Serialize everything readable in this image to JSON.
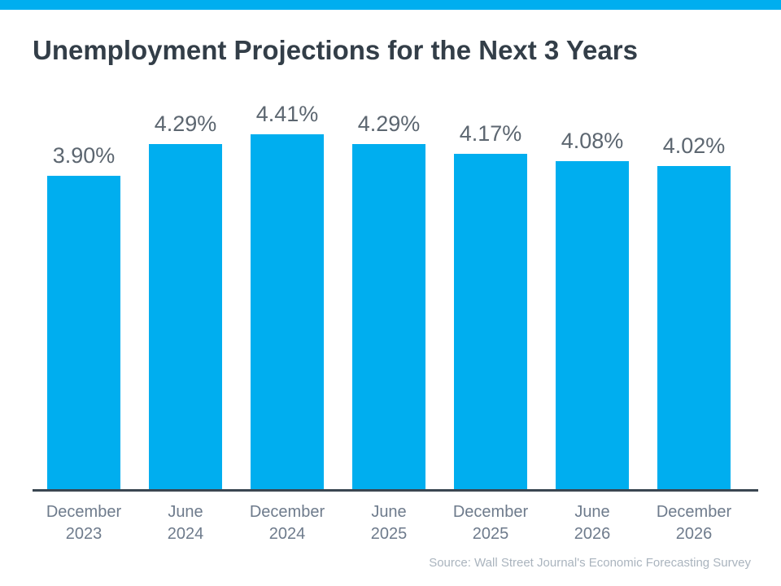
{
  "title": "Unemployment Projections for the Next 3 Years",
  "source_note": "Source: Wall Street Journal's Economic Forecasting Survey",
  "colors": {
    "background": "#FFFFFF",
    "accent": "#00AEEF",
    "bar_fill": "#00AEEF",
    "title_text": "#333E48",
    "value_label_text": "#5C6670",
    "axis_label_text": "#6E7B8C",
    "axis_line": "#3A4651",
    "source_text": "#AAB4BE"
  },
  "chart_data": {
    "type": "bar",
    "title": "Unemployment Projections for the Next 3 Years",
    "categories": [
      "December 2023",
      "June 2024",
      "December 2024",
      "June 2025",
      "December 2025",
      "June 2026",
      "December 2026"
    ],
    "category_lines": [
      [
        "December",
        "2023"
      ],
      [
        "June",
        "2024"
      ],
      [
        "December",
        "2024"
      ],
      [
        "June",
        "2025"
      ],
      [
        "December",
        "2025"
      ],
      [
        "June",
        "2026"
      ],
      [
        "December",
        "2026"
      ]
    ],
    "values": [
      3.9,
      4.29,
      4.41,
      4.29,
      4.17,
      4.08,
      4.02
    ],
    "value_labels": [
      "3.90%",
      "4.29%",
      "4.41%",
      "4.29%",
      "4.17%",
      "4.08%",
      "4.02%"
    ],
    "xlabel": "",
    "ylabel": "",
    "ylim": [
      0,
      6.1
    ],
    "grid": false,
    "legend": false,
    "bar_color": "#00AEEF",
    "source": "Source: Wall Street Journal's Economic Forecasting Survey"
  }
}
